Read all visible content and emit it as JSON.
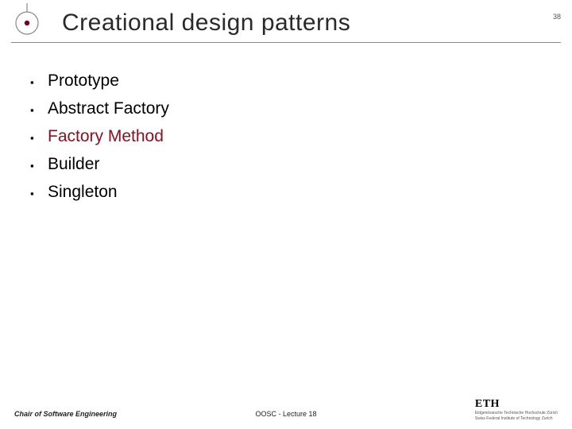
{
  "header": {
    "title": "Creational design patterns",
    "page_number": "38",
    "title_color": "#2a2a2a",
    "title_fontsize": 30,
    "rule_color": "#888888"
  },
  "logo": {
    "outer_ring_color": "#888888",
    "inner_dot_color": "#7a0018",
    "tick_color": "#888888"
  },
  "bullets": {
    "items": [
      {
        "text": "Prototype",
        "color": "#000000"
      },
      {
        "text": "Abstract Factory",
        "color": "#000000"
      },
      {
        "text": "Factory Method",
        "color": "#8a1020"
      },
      {
        "text": "Builder",
        "color": "#000000"
      },
      {
        "text": "Singleton",
        "color": "#000000"
      }
    ],
    "marker": "▪",
    "marker_color": "#000000",
    "fontsize": 21
  },
  "footer": {
    "left": "Chair of Software Engineering",
    "center": "OOSC - Lecture 18",
    "eth_text": "ETH",
    "eth_sub1": "Eidgenössische Technische Hochschule Zürich",
    "eth_sub2": "Swiss Federal Institute of Technology Zurich"
  },
  "background_color": "#ffffff"
}
